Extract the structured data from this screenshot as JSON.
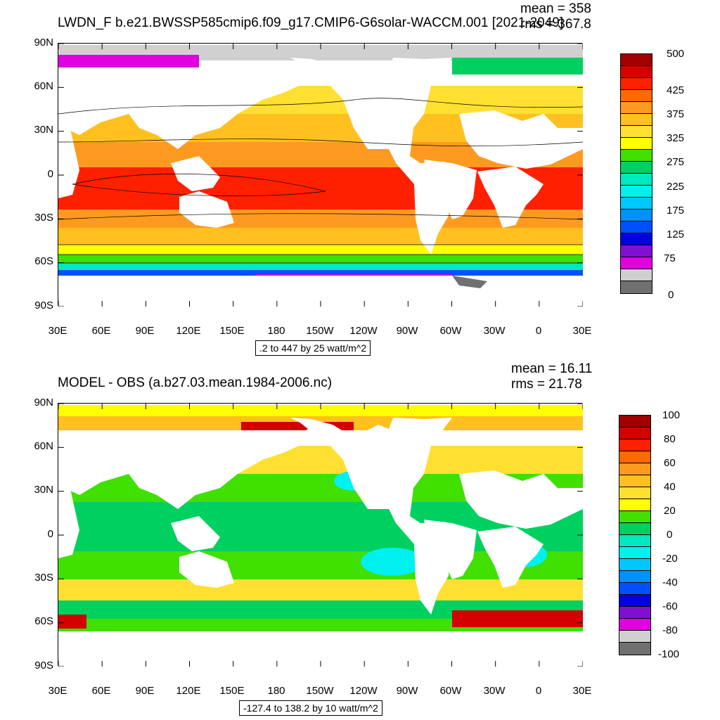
{
  "panel1": {
    "title": "LWDN_F b.e21.BWSSP585cmip6.f09_g17.CMIP6-G6solar-WACCM.001 [2021-2049]",
    "mean": "mean = 358",
    "rms": "rms = 367.8",
    "range_label": ".2 to 447 by 25 watt/m^2",
    "colorbar_labels": [
      "500",
      "425",
      "375",
      "325",
      "275",
      "225",
      "175",
      "125",
      "75",
      "0"
    ],
    "colorbar_colors": [
      "#a00000",
      "#d40000",
      "#ff2000",
      "#ff6a00",
      "#ff9a20",
      "#ffc020",
      "#ffe030",
      "#ffff00",
      "#40e000",
      "#00d060",
      "#00e8c0",
      "#00f0f0",
      "#00c8ff",
      "#0090ff",
      "#0050ff",
      "#0000e0",
      "#8010d0",
      "#e000e0",
      "#d0d0d0",
      "#707070"
    ]
  },
  "panel2": {
    "title": "MODEL - OBS (a.b27.03.mean.1984-2006.nc)",
    "mean": "mean = 16.11",
    "rms": "rms = 21.78",
    "range_label": "-127.4 to 138.2 by 10 watt/m^2",
    "colorbar_labels": [
      "100",
      "80",
      "60",
      "40",
      "20",
      "0",
      "-20",
      "-40",
      "-60",
      "-80",
      "-100"
    ],
    "colorbar_colors": [
      "#a00000",
      "#d40000",
      "#ff2000",
      "#ff6a00",
      "#ff9a20",
      "#ffc020",
      "#ffe030",
      "#ffff00",
      "#40e000",
      "#00d060",
      "#00e8c0",
      "#00f0f0",
      "#00c8ff",
      "#0090ff",
      "#0050ff",
      "#0000e0",
      "#8010d0",
      "#e000e0",
      "#d0d0d0",
      "#707070"
    ]
  },
  "axes": {
    "lat_labels": [
      "90N",
      "60N",
      "30N",
      "0",
      "30S",
      "60S",
      "90S"
    ],
    "lon_labels": [
      "30E",
      "60E",
      "90E",
      "120E",
      "150E",
      "180",
      "150W",
      "120W",
      "90W",
      "60W",
      "30W",
      "0",
      "30E"
    ]
  }
}
